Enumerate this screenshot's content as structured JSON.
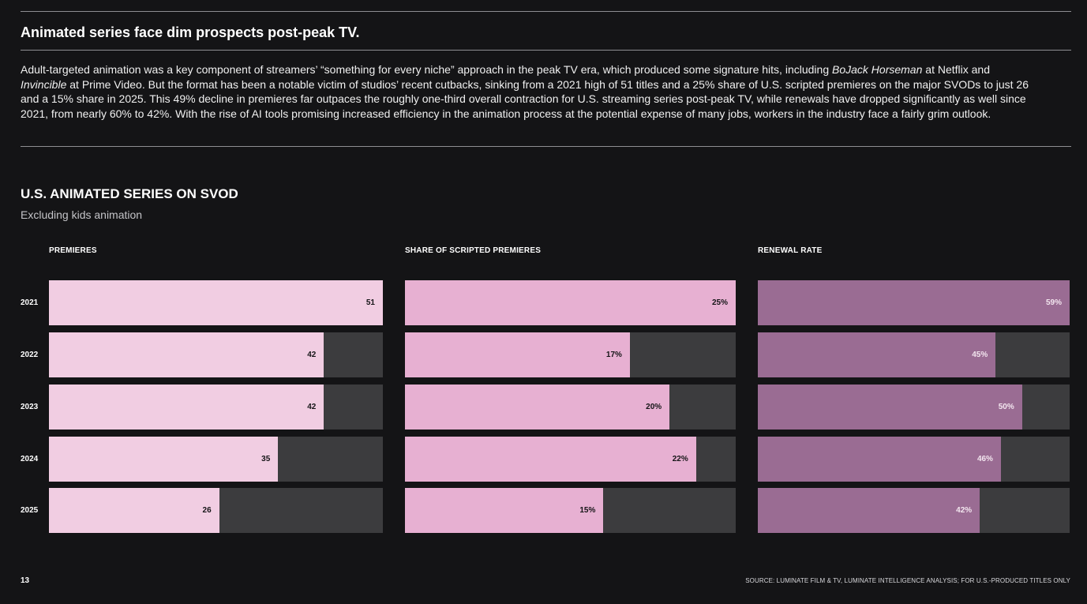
{
  "headline": "Animated series face dim prospects post-peak TV.",
  "body": [
    {
      "text": "Adult-targeted animation was a key component of streamers’ “something for every niche” approach in the peak TV era, which produced some signature hits, including ",
      "italic": false
    },
    {
      "text": "BoJack Horseman",
      "italic": true
    },
    {
      "text": " at Netflix and ",
      "italic": false
    },
    {
      "text": "Invincible",
      "italic": true
    },
    {
      "text": " at Prime Video. But the format has been a notable victim of studios’ recent cutbacks, sinking from a 2021 high of 51 titles and a 25% share of U.S. scripted premieres on the major SVODs to just 26 and a 15% share in 2025. This 49% decline in premieres far outpaces the roughly one-third overall contraction for U.S. streaming series post-peak TV, while renewals have dropped significantly as well since 2021, from nearly 60% to 42%. With the rise of AI tools promising increased efficiency in the animation process at the potential expense of many jobs, workers in the industry face a fairly grim outlook.",
      "italic": false
    }
  ],
  "chart_title": "U.S. ANIMATED SERIES ON SVOD",
  "chart_subtitle": "Excluding kids animation",
  "chart_data": {
    "type": "bar",
    "orientation": "horizontal",
    "categories": [
      "2021",
      "2022",
      "2023",
      "2024",
      "2025"
    ],
    "panels": [
      {
        "title": "PREMIERES",
        "values": [
          51,
          42,
          42,
          35,
          26
        ],
        "labels": [
          "51",
          "42",
          "42",
          "35",
          "26"
        ],
        "max": 51,
        "color": "#f1cde2",
        "label_color": "#141416"
      },
      {
        "title": "SHARE OF SCRIPTED PREMIERES",
        "values": [
          25,
          17,
          20,
          22,
          15
        ],
        "labels": [
          "25%",
          "17%",
          "20%",
          "22%",
          "15%"
        ],
        "max": 25,
        "color": "#e7b0d2",
        "label_color": "#141416"
      },
      {
        "title": "RENEWAL RATE",
        "values": [
          59,
          45,
          50,
          46,
          42
        ],
        "labels": [
          "59%",
          "45%",
          "50%",
          "46%",
          "42%"
        ],
        "max": 59,
        "color": "#9a6c93",
        "label_color": "#f3e6ef"
      }
    ],
    "track_color": "#3c3c3e"
  },
  "page_number": "13",
  "source": "SOURCE: LUMINATE FILM & TV, LUMINATE INTELLIGENCE ANALYSIS; FOR U.S.-PRODUCED TITLES ONLY"
}
